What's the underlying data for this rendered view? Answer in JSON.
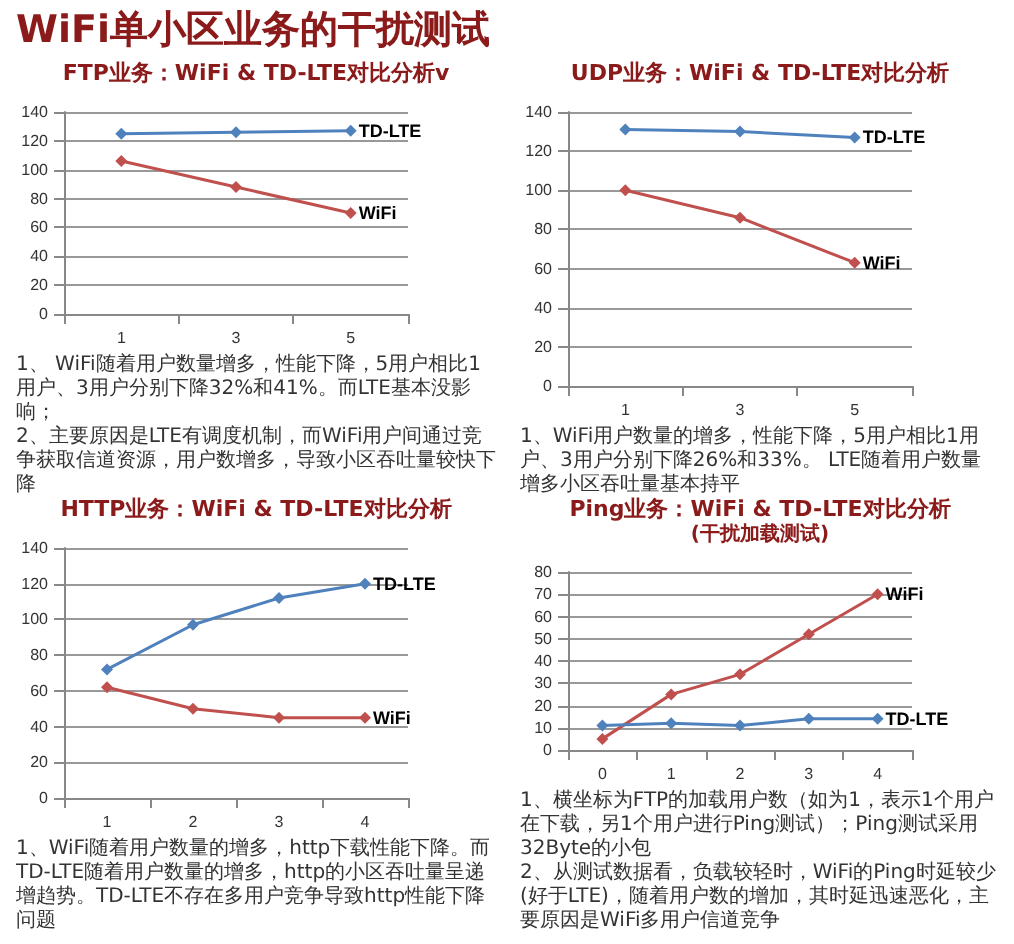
{
  "chart_data": [
    {
      "type": "other",
      "title": "WiFi单小区业务的干扰测试"
    },
    {
      "type": "line",
      "title": "FTP业务：WiFi & TD-LTE对比分析v",
      "categories": [
        "1",
        "3",
        "5"
      ],
      "series": [
        {
          "name": "TD-LTE",
          "color": "#4f81bd",
          "values": [
            125,
            126,
            127
          ]
        },
        {
          "name": "WiFi",
          "color": "#c0504d",
          "values": [
            106,
            88,
            70
          ]
        }
      ],
      "ylim": [
        0,
        140
      ],
      "yticks": [
        0,
        20,
        40,
        60,
        80,
        100,
        120,
        140
      ],
      "grid": "y",
      "marker": "diamond",
      "annotations": [
        "1、 WiFi随着用户数量增多，性能下降，5用户相比1用户、3用户分别下降32%和41%。而LTE基本没影响；",
        "2、主要原因是LTE有调度机制，而WiFi用户间通过竞争获取信道资源，用户数增多，导致小区吞吐量较快下降"
      ]
    },
    {
      "type": "line",
      "title": "UDP业务：WiFi & TD-LTE对比分析",
      "categories": [
        "1",
        "3",
        "5"
      ],
      "series": [
        {
          "name": "TD-LTE",
          "color": "#4f81bd",
          "values": [
            131,
            130,
            127
          ]
        },
        {
          "name": "WiFi",
          "color": "#c0504d",
          "values": [
            100,
            86,
            63
          ]
        }
      ],
      "ylim": [
        0,
        140
      ],
      "yticks": [
        0,
        20,
        40,
        60,
        80,
        100,
        120,
        140
      ],
      "grid": "y",
      "marker": "diamond",
      "annotations": [
        "1、WiFi用户数量的增多，性能下降，5用户相比1用户、3用户分别下降26%和33%。 LTE随着用户数量增多小区吞吐量基本持平"
      ]
    },
    {
      "type": "line",
      "title": "HTTP业务：WiFi & TD-LTE对比分析",
      "categories": [
        "1",
        "2",
        "3",
        "4"
      ],
      "series": [
        {
          "name": "TD-LTE",
          "color": "#4f81bd",
          "values": [
            72,
            97,
            112,
            120
          ]
        },
        {
          "name": "WiFi",
          "color": "#c0504d",
          "values": [
            62,
            50,
            45,
            45
          ]
        }
      ],
      "ylim": [
        0,
        140
      ],
      "yticks": [
        0,
        20,
        40,
        60,
        80,
        100,
        120,
        140
      ],
      "grid": "y",
      "marker": "diamond",
      "annotations": [
        "1、WiFi随着用户数量的增多，http下载性能下降。而TD-LTE随着用户数量的增多，http的小区吞吐量呈递增趋势。TD-LTE不存在多用户竞争导致http性能下降问题"
      ]
    },
    {
      "type": "line",
      "title": "Ping业务：WiFi & TD-LTE对比分析",
      "subtitle": "(干扰加载测试)",
      "categories": [
        "0",
        "1",
        "2",
        "3",
        "4"
      ],
      "series": [
        {
          "name": "WiFi",
          "color": "#c0504d",
          "values": [
            5,
            25,
            34,
            52,
            70
          ]
        },
        {
          "name": "TD-LTE",
          "color": "#4f81bd",
          "values": [
            11,
            12,
            11,
            14,
            14
          ]
        }
      ],
      "ylim": [
        0,
        80
      ],
      "yticks": [
        0,
        10,
        20,
        30,
        40,
        50,
        60,
        70,
        80
      ],
      "grid": "y",
      "marker": "diamond",
      "annotations": [
        "1、横坐标为FTP的加载用户数（如为1，表示1个用户在下载，另1个用户进行Ping测试）；Ping测试采用32Byte的小包",
        "2、从测试数据看，负载较轻时，WiFi的Ping时延较少(好于LTE)，随着用户数的增加，其时延迅速恶化，主要原因是WiFi多用户信道竞争"
      ]
    }
  ]
}
